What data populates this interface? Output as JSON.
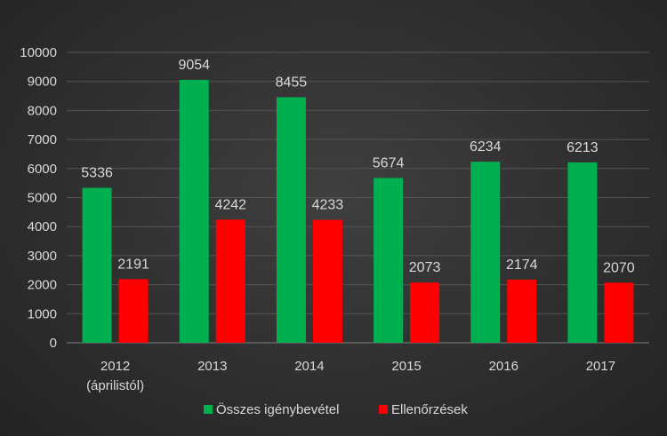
{
  "chart_data": {
    "type": "bar",
    "categories": [
      [
        "2012",
        "(áprilistól)"
      ],
      [
        "2013"
      ],
      [
        "2014"
      ],
      [
        "2015"
      ],
      [
        "2016"
      ],
      [
        "2017"
      ]
    ],
    "series": [
      {
        "name": "Összes igénybevétel",
        "color": "#00b050",
        "values": [
          5336,
          9054,
          8455,
          5674,
          6234,
          6213
        ]
      },
      {
        "name": "Ellenőrzések",
        "color": "#ff0000",
        "values": [
          2191,
          4242,
          4233,
          2073,
          2174,
          2070
        ]
      }
    ],
    "yticks": [
      0,
      1000,
      2000,
      3000,
      4000,
      5000,
      6000,
      7000,
      8000,
      9000,
      10000
    ],
    "ylim": [
      0,
      10000
    ],
    "grid": true,
    "legend_position": "bottom",
    "data_labels": true
  }
}
